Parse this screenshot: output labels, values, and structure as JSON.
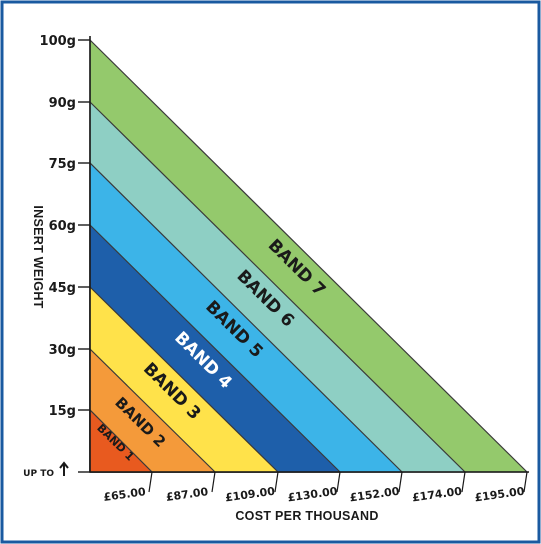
{
  "colors": {
    "frame_border": "#1a5aa0",
    "axis": "#1a1a1a",
    "band_outline": "#3a3a3a"
  },
  "chart_data": {
    "type": "area",
    "xlabel": "COST PER THOUSAND",
    "ylabel": "INSERT WEIGHT",
    "y_tick_labels": [
      "UP TO",
      "15g",
      "30g",
      "45g",
      "60g",
      "75g",
      "90g",
      "100g"
    ],
    "x_tick_labels": [
      "£65.00",
      "£87.00",
      "£109.00",
      "£130.00",
      "£152.00",
      "£174.00",
      "£195.00"
    ],
    "bands": [
      {
        "name": "BAND 1",
        "max_weight_g": 15,
        "cost_per_thousand": "£65.00",
        "color": "#e85a1f",
        "label_color": "#1a1a1a"
      },
      {
        "name": "BAND 2",
        "max_weight_g": 30,
        "cost_per_thousand": "£87.00",
        "color": "#f49a3a",
        "label_color": "#1a1a1a"
      },
      {
        "name": "BAND 3",
        "max_weight_g": 45,
        "cost_per_thousand": "£109.00",
        "color": "#ffe24a",
        "label_color": "#1a1a1a"
      },
      {
        "name": "BAND 4",
        "max_weight_g": 60,
        "cost_per_thousand": "£130.00",
        "color": "#1e5faa",
        "label_color": "#ffffff"
      },
      {
        "name": "BAND 5",
        "max_weight_g": 75,
        "cost_per_thousand": "£152.00",
        "color": "#3cb4e8",
        "label_color": "#1a1a1a"
      },
      {
        "name": "BAND 6",
        "max_weight_g": 90,
        "cost_per_thousand": "£174.00",
        "color": "#8ecfc4",
        "label_color": "#1a1a1a"
      },
      {
        "name": "BAND 7",
        "max_weight_g": 100,
        "cost_per_thousand": "£195.00",
        "color": "#94c96c",
        "label_color": "#1a1a1a"
      }
    ]
  }
}
